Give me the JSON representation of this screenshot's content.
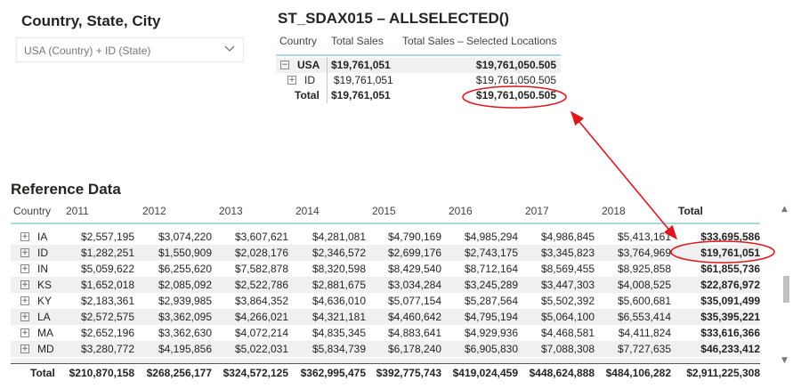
{
  "slicer": {
    "title": "Country, State, City",
    "value": "USA (Country) + ID (State)"
  },
  "matrix": {
    "title": "ST_SDAX015 – ALLSELECTED()",
    "headers": [
      "Country",
      "Total Sales",
      "Total Sales – Selected Locations"
    ],
    "rows": [
      {
        "label": "USA",
        "sales": "$19,761,051",
        "selected": "$19,761,050.505"
      },
      {
        "label": "ID",
        "sales": "$19,761,051",
        "selected": "$19,761,050.505"
      },
      {
        "label": "Total",
        "sales": "$19,761,051",
        "selected": "$19,761,050.505"
      }
    ],
    "expand_symbols": {
      "collapse": "−",
      "expand": "+"
    }
  },
  "reference": {
    "title": "Reference Data",
    "headers": [
      "Country",
      "2011",
      "2012",
      "2013",
      "2014",
      "2015",
      "2016",
      "2017",
      "2018",
      "Total"
    ],
    "rows": [
      {
        "state": "IA",
        "values": [
          "$2,557,195",
          "$3,074,220",
          "$3,607,621",
          "$4,281,081",
          "$4,790,169",
          "$4,985,294",
          "$4,986,845",
          "$5,413,161",
          "$33,695,586"
        ]
      },
      {
        "state": "ID",
        "values": [
          "$1,282,251",
          "$1,550,909",
          "$2,028,176",
          "$2,346,572",
          "$2,699,176",
          "$2,743,175",
          "$3,345,823",
          "$3,764,969",
          "$19,761,051"
        ]
      },
      {
        "state": "IN",
        "values": [
          "$5,059,622",
          "$6,255,620",
          "$7,582,878",
          "$8,320,598",
          "$8,429,540",
          "$8,712,164",
          "$8,569,455",
          "$8,925,858",
          "$61,855,736"
        ]
      },
      {
        "state": "KS",
        "values": [
          "$1,652,018",
          "$2,085,092",
          "$2,522,786",
          "$2,881,675",
          "$3,034,284",
          "$3,245,289",
          "$3,447,303",
          "$4,008,525",
          "$22,876,972"
        ]
      },
      {
        "state": "KY",
        "values": [
          "$2,183,361",
          "$2,939,985",
          "$3,864,352",
          "$4,636,010",
          "$5,077,154",
          "$5,287,564",
          "$5,502,392",
          "$5,600,681",
          "$35,091,499"
        ]
      },
      {
        "state": "LA",
        "values": [
          "$2,572,575",
          "$3,362,095",
          "$4,266,021",
          "$4,321,181",
          "$4,460,642",
          "$4,795,194",
          "$5,064,100",
          "$6,553,414",
          "$35,395,221"
        ]
      },
      {
        "state": "MA",
        "values": [
          "$2,652,196",
          "$3,362,630",
          "$4,072,214",
          "$4,835,345",
          "$4,883,641",
          "$4,929,936",
          "$4,468,581",
          "$4,411,824",
          "$33,616,366"
        ]
      },
      {
        "state": "MD",
        "values": [
          "$3,280,772",
          "$4,195,856",
          "$5,022,031",
          "$5,834,739",
          "$6,178,240",
          "$6,905,830",
          "$7,088,308",
          "$7,727,635",
          "$46,233,412"
        ]
      }
    ],
    "footer": {
      "label": "Total",
      "values": [
        "$210,870,158",
        "$268,256,177",
        "$324,572,125",
        "$362,995,475",
        "$392,775,743",
        "$419,024,459",
        "$448,624,888",
        "$484,106,282",
        "$2,911,225,308"
      ]
    }
  },
  "scrollbar": {
    "up": "▲",
    "down": "▼"
  },
  "colors": {
    "highlight": "#e0161c",
    "header_rule": "#a8d8e0",
    "row_band": "#f0f0f0"
  }
}
